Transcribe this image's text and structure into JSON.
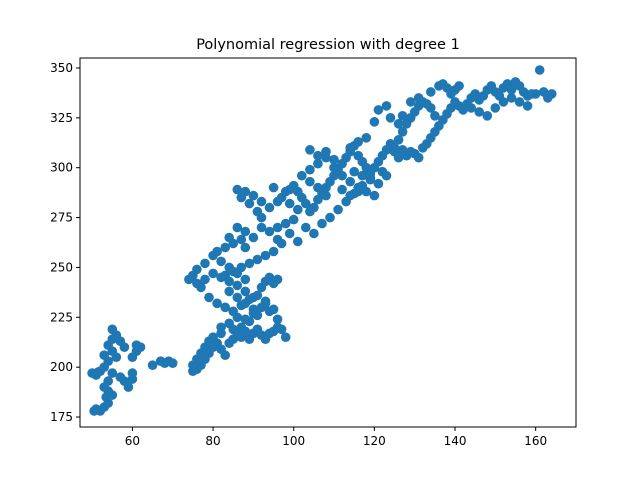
{
  "chart_data": {
    "type": "scatter",
    "title": "Polynomial regression with degree 1",
    "xlabel": "",
    "ylabel": "",
    "xlim": [
      47,
      170
    ],
    "ylim": [
      170,
      355
    ],
    "xticks": [
      60,
      80,
      100,
      120,
      140,
      160
    ],
    "yticks": [
      175,
      200,
      225,
      250,
      275,
      300,
      325,
      350
    ],
    "grid": false,
    "marker_color": "#1f77b4",
    "series": [
      {
        "points": [
          [
            50,
            197
          ],
          [
            51,
            196
          ],
          [
            52,
            198
          ],
          [
            51.5,
            197.5
          ],
          [
            50.5,
            178
          ],
          [
            51,
            179
          ],
          [
            52,
            178
          ],
          [
            53,
            180
          ],
          [
            54,
            182
          ],
          [
            53.5,
            185
          ],
          [
            54,
            188
          ],
          [
            55,
            186
          ],
          [
            53,
            190
          ],
          [
            54,
            193
          ],
          [
            53,
            200
          ],
          [
            54,
            203
          ],
          [
            53,
            206
          ],
          [
            55,
            208
          ],
          [
            54,
            211
          ],
          [
            55,
            214
          ],
          [
            56,
            216
          ],
          [
            55,
            219
          ],
          [
            57,
            213
          ],
          [
            58,
            210
          ],
          [
            56,
            205
          ],
          [
            55,
            197
          ],
          [
            57,
            195
          ],
          [
            58,
            193
          ],
          [
            59,
            190
          ],
          [
            60,
            194
          ],
          [
            60,
            205
          ],
          [
            61,
            208
          ],
          [
            62,
            210
          ],
          [
            61,
            211
          ],
          [
            60,
            197
          ],
          [
            65,
            201
          ],
          [
            67,
            203
          ],
          [
            68,
            202
          ],
          [
            69,
            203
          ],
          [
            70,
            202
          ],
          [
            75,
            198
          ],
          [
            75,
            201
          ],
          [
            76,
            204
          ],
          [
            77,
            207
          ],
          [
            78,
            210
          ],
          [
            79,
            213
          ],
          [
            80,
            215
          ],
          [
            81,
            212
          ],
          [
            82,
            209
          ],
          [
            83,
            206
          ],
          [
            84,
            212
          ],
          [
            85,
            214
          ],
          [
            86,
            217
          ],
          [
            87,
            215
          ],
          [
            88,
            218
          ],
          [
            89,
            214
          ],
          [
            90,
            217
          ],
          [
            91,
            219
          ],
          [
            92,
            216
          ],
          [
            93,
            214
          ],
          [
            94,
            217
          ],
          [
            95,
            218
          ],
          [
            96,
            220
          ],
          [
            97,
            219
          ],
          [
            98,
            215
          ],
          [
            82,
            220
          ],
          [
            84,
            222
          ],
          [
            86,
            225
          ],
          [
            88,
            224
          ],
          [
            90,
            227
          ],
          [
            92,
            230
          ],
          [
            93,
            233
          ],
          [
            90,
            235
          ],
          [
            88,
            238
          ],
          [
            86,
            241
          ],
          [
            84,
            243
          ],
          [
            82,
            245
          ],
          [
            80,
            247
          ],
          [
            78,
            244
          ],
          [
            77,
            240
          ],
          [
            79,
            235
          ],
          [
            81,
            232
          ],
          [
            83,
            230
          ],
          [
            85,
            228
          ],
          [
            87,
            231
          ],
          [
            89,
            234
          ],
          [
            91,
            236
          ],
          [
            93,
            232
          ],
          [
            94,
            228
          ],
          [
            95,
            229
          ],
          [
            96,
            224
          ],
          [
            92,
            240
          ],
          [
            93,
            243
          ],
          [
            94,
            245
          ],
          [
            95,
            242
          ],
          [
            96,
            244
          ],
          [
            88,
            244
          ],
          [
            86,
            247
          ],
          [
            84,
            250
          ],
          [
            82,
            253
          ],
          [
            80,
            256
          ],
          [
            78,
            252
          ],
          [
            76,
            249
          ],
          [
            75,
            246
          ],
          [
            74,
            244
          ],
          [
            76,
            242
          ],
          [
            81,
            258
          ],
          [
            83,
            260
          ],
          [
            85,
            262
          ],
          [
            87,
            264
          ],
          [
            88,
            260
          ],
          [
            84,
            265
          ],
          [
            86,
            270
          ],
          [
            88,
            268
          ],
          [
            90,
            265
          ],
          [
            92,
            270
          ],
          [
            94,
            268
          ],
          [
            96,
            264
          ],
          [
            97,
            262
          ],
          [
            92,
            275
          ],
          [
            91,
            278
          ],
          [
            89,
            282
          ],
          [
            87,
            285
          ],
          [
            86,
            289
          ],
          [
            88,
            288
          ],
          [
            90,
            286
          ],
          [
            92,
            283
          ],
          [
            94,
            280
          ],
          [
            96,
            283
          ],
          [
            98,
            288
          ],
          [
            99,
            289
          ],
          [
            100,
            291
          ],
          [
            101,
            288
          ],
          [
            102,
            285
          ],
          [
            103,
            282
          ],
          [
            104,
            278
          ],
          [
            105,
            280
          ],
          [
            106,
            284
          ],
          [
            107,
            287
          ],
          [
            108,
            290
          ],
          [
            109,
            293
          ],
          [
            110,
            296
          ],
          [
            111,
            299
          ],
          [
            112,
            302
          ],
          [
            113,
            305
          ],
          [
            114,
            308
          ],
          [
            115,
            311
          ],
          [
            116,
            306
          ],
          [
            117,
            303
          ],
          [
            118,
            300
          ],
          [
            119,
            297
          ],
          [
            120,
            300
          ],
          [
            121,
            303
          ],
          [
            122,
            306
          ],
          [
            123,
            309
          ],
          [
            124,
            312
          ],
          [
            125,
            308
          ],
          [
            126,
            305
          ],
          [
            127,
            309
          ],
          [
            128,
            306
          ],
          [
            129,
            308
          ],
          [
            130,
            307
          ],
          [
            131,
            305
          ],
          [
            132,
            310
          ],
          [
            133,
            312
          ],
          [
            134,
            315
          ],
          [
            135,
            318
          ],
          [
            136,
            321
          ],
          [
            137,
            324
          ],
          [
            138,
            327
          ],
          [
            139,
            330
          ],
          [
            140,
            333
          ],
          [
            141,
            331
          ],
          [
            142,
            329
          ],
          [
            143,
            332
          ],
          [
            144,
            335
          ],
          [
            145,
            337
          ],
          [
            146,
            334
          ],
          [
            147,
            336
          ],
          [
            148,
            339
          ],
          [
            149,
            341
          ],
          [
            150,
            338
          ],
          [
            151,
            336
          ],
          [
            152,
            340
          ],
          [
            153,
            342
          ],
          [
            154,
            339
          ],
          [
            155,
            343
          ],
          [
            156,
            341
          ],
          [
            157,
            338
          ],
          [
            158,
            336
          ],
          [
            159,
            337
          ],
          [
            160,
            337
          ],
          [
            161,
            349
          ],
          [
            162,
            338
          ],
          [
            163,
            336
          ],
          [
            164,
            337
          ],
          [
            163,
            335
          ],
          [
            102,
            296
          ],
          [
            104,
            299
          ],
          [
            106,
            302
          ],
          [
            108,
            305
          ],
          [
            110,
            300
          ],
          [
            112,
            296
          ],
          [
            114,
            293
          ],
          [
            116,
            290
          ],
          [
            118,
            288
          ],
          [
            120,
            286
          ],
          [
            103,
            270
          ],
          [
            105,
            267
          ],
          [
            107,
            272
          ],
          [
            109,
            275
          ],
          [
            111,
            279
          ],
          [
            113,
            283
          ],
          [
            115,
            287
          ],
          [
            117,
            291
          ],
          [
            119,
            295
          ],
          [
            122,
            298
          ],
          [
            125,
            310
          ],
          [
            126,
            314
          ],
          [
            127,
            318
          ],
          [
            128,
            322
          ],
          [
            129,
            325
          ],
          [
            130,
            328
          ],
          [
            131,
            331
          ],
          [
            132,
            333
          ],
          [
            133,
            332
          ],
          [
            134,
            330
          ],
          [
            135,
            326
          ],
          [
            123,
            331
          ],
          [
            121,
            329
          ],
          [
            120,
            323
          ],
          [
            124,
            325
          ],
          [
            126,
            322
          ],
          [
            127,
            326
          ],
          [
            129,
            333
          ],
          [
            131,
            335
          ],
          [
            134,
            338
          ],
          [
            136,
            341
          ],
          [
            137,
            342
          ],
          [
            138,
            340
          ],
          [
            139,
            337
          ],
          [
            140,
            339
          ],
          [
            141,
            341
          ],
          [
            144,
            330
          ],
          [
            146,
            328
          ],
          [
            148,
            326
          ],
          [
            150,
            330
          ],
          [
            152,
            333
          ],
          [
            154,
            335
          ],
          [
            156,
            333
          ],
          [
            158,
            331
          ],
          [
            95,
            290
          ],
          [
            97,
            285
          ],
          [
            99,
            282
          ],
          [
            101,
            279
          ],
          [
            100,
            274
          ],
          [
            98,
            272
          ],
          [
            96,
            270
          ],
          [
            99,
            267
          ],
          [
            101,
            263
          ],
          [
            95,
            258
          ],
          [
            93,
            256
          ],
          [
            91,
            254
          ],
          [
            89,
            252
          ],
          [
            87,
            250
          ],
          [
            85,
            248
          ],
          [
            83,
            246
          ],
          [
            84,
            238
          ],
          [
            86,
            235
          ],
          [
            88,
            232
          ],
          [
            90,
            229
          ],
          [
            91,
            226
          ],
          [
            89,
            223
          ],
          [
            87,
            220
          ],
          [
            85,
            219
          ],
          [
            82,
            217
          ],
          [
            80,
            210
          ],
          [
            79,
            207
          ],
          [
            78,
            204
          ],
          [
            77,
            201
          ],
          [
            76,
            199
          ],
          [
            114,
            310
          ],
          [
            116,
            313
          ],
          [
            118,
            315
          ],
          [
            115,
            298
          ],
          [
            117,
            296
          ],
          [
            119,
            294
          ],
          [
            121,
            292
          ],
          [
            123,
            296
          ],
          [
            110,
            304
          ],
          [
            108,
            308
          ],
          [
            106,
            306
          ],
          [
            104,
            309
          ],
          [
            112,
            289
          ],
          [
            114,
            286
          ],
          [
            116,
            288
          ],
          [
            108,
            286
          ],
          [
            106,
            290
          ],
          [
            104,
            293
          ]
        ]
      }
    ]
  }
}
